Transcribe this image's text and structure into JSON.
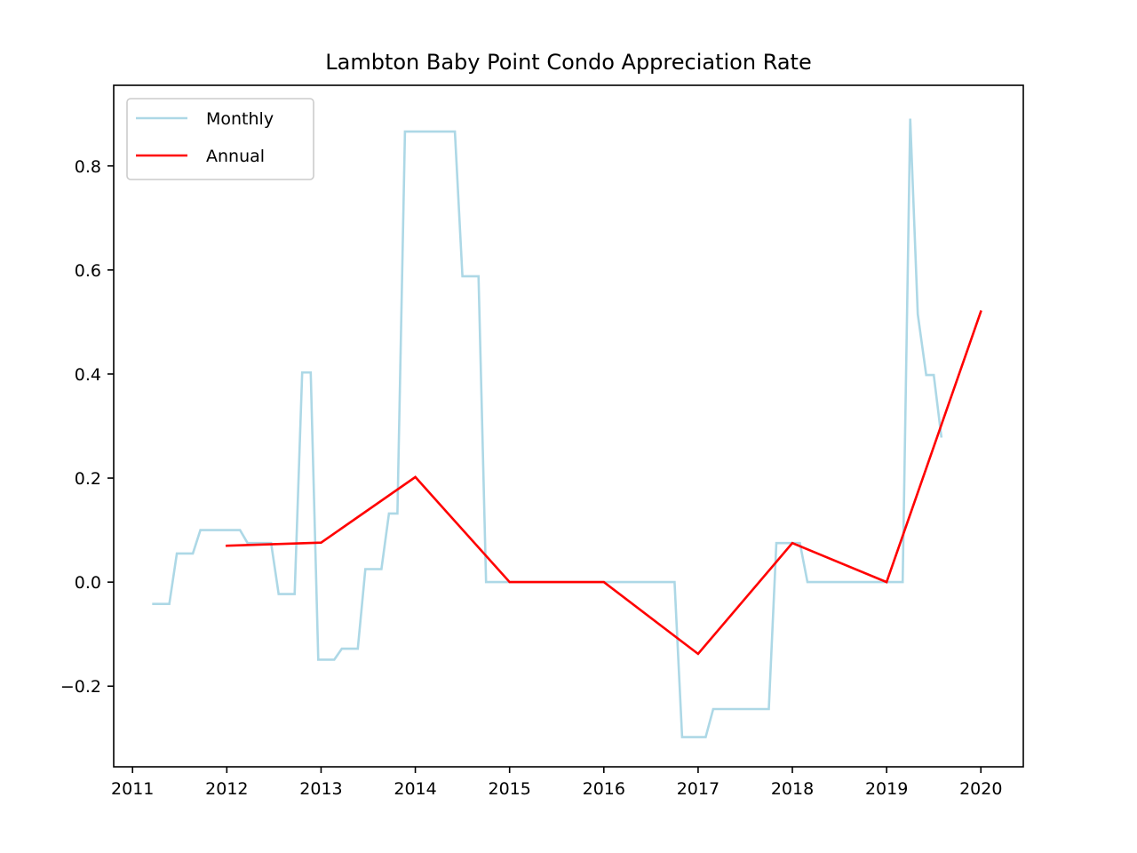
{
  "chart_data": {
    "type": "line",
    "title": "Lambton Baby Point Condo Appreciation Rate",
    "xlabel": "",
    "ylabel": "",
    "xlim": [
      2010.8,
      2020.45
    ],
    "ylim": [
      -0.355,
      0.955
    ],
    "x_ticks": [
      2011,
      2012,
      2013,
      2014,
      2015,
      2016,
      2017,
      2018,
      2019,
      2020
    ],
    "x_tick_labels": [
      "2011",
      "2012",
      "2013",
      "2014",
      "2015",
      "2016",
      "2017",
      "2018",
      "2019",
      "2020"
    ],
    "y_ticks": [
      -0.2,
      0.0,
      0.2,
      0.4,
      0.6,
      0.8
    ],
    "y_tick_labels": [
      "−0.2",
      "0.0",
      "0.2",
      "0.4",
      "0.6",
      "0.8"
    ],
    "grid": false,
    "legend_position": "top-left",
    "series": [
      {
        "name": "Monthly",
        "color": "#add8e6",
        "points": [
          [
            2011.22,
            -0.042
          ],
          [
            2011.39,
            -0.042
          ],
          [
            2011.47,
            0.055
          ],
          [
            2011.64,
            0.055
          ],
          [
            2011.72,
            0.1
          ],
          [
            2012.14,
            0.1
          ],
          [
            2012.22,
            0.075
          ],
          [
            2012.47,
            0.075
          ],
          [
            2012.55,
            -0.023
          ],
          [
            2012.72,
            -0.023
          ],
          [
            2012.8,
            0.403
          ],
          [
            2012.89,
            0.403
          ],
          [
            2012.97,
            -0.149
          ],
          [
            2013.14,
            -0.149
          ],
          [
            2013.22,
            -0.128
          ],
          [
            2013.39,
            -0.128
          ],
          [
            2013.47,
            0.025
          ],
          [
            2013.64,
            0.025
          ],
          [
            2013.72,
            0.132
          ],
          [
            2013.81,
            0.132
          ],
          [
            2013.89,
            0.866
          ],
          [
            2014.42,
            0.866
          ],
          [
            2014.5,
            0.588
          ],
          [
            2014.67,
            0.588
          ],
          [
            2014.75,
            0.0
          ],
          [
            2016.75,
            0.0
          ],
          [
            2016.83,
            -0.298
          ],
          [
            2017.08,
            -0.298
          ],
          [
            2017.16,
            -0.244
          ],
          [
            2017.75,
            -0.244
          ],
          [
            2017.83,
            0.075
          ],
          [
            2018.08,
            0.075
          ],
          [
            2018.16,
            0.0
          ],
          [
            2019.17,
            0.0
          ],
          [
            2019.25,
            0.891
          ],
          [
            2019.33,
            0.515
          ],
          [
            2019.42,
            0.398
          ],
          [
            2019.5,
            0.398
          ],
          [
            2019.58,
            0.28
          ]
        ]
      },
      {
        "name": "Annual",
        "color": "#ff0000",
        "points": [
          [
            2012,
            0.07
          ],
          [
            2013,
            0.076
          ],
          [
            2014,
            0.202
          ],
          [
            2015,
            0.0
          ],
          [
            2016,
            0.0
          ],
          [
            2017,
            -0.138
          ],
          [
            2018,
            0.075
          ],
          [
            2019,
            0.0
          ],
          [
            2020,
            0.52
          ]
        ]
      }
    ]
  }
}
